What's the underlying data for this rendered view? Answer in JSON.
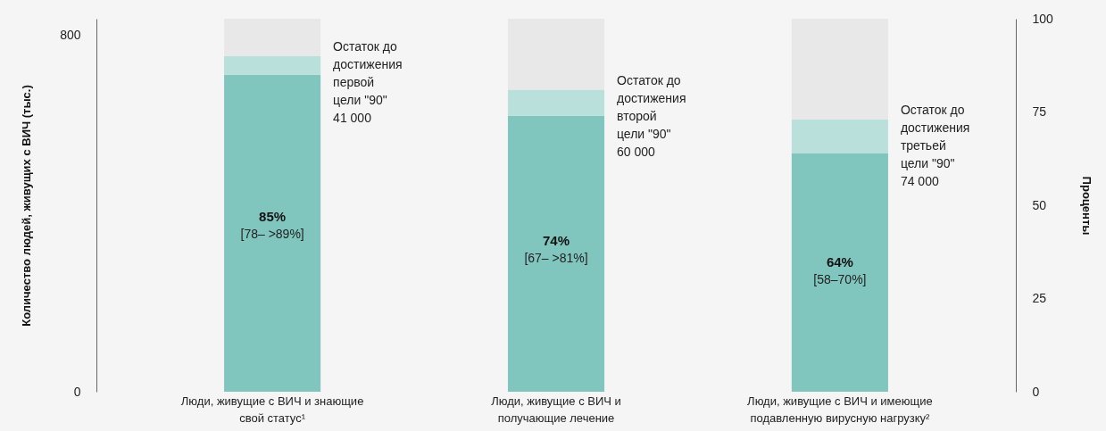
{
  "chart_data": {
    "type": "bar",
    "stacked": true,
    "grid": false,
    "ylabel": "Количество людей, живущих с ВИЧ (тыс.)",
    "y2label": "Проценты",
    "categories": [
      "Люди, живущие с ВИЧ и знающие свой статус¹",
      "Люди, живущие с ВИЧ и получающие лечение",
      "Люди, живущие с ВИЧ и имеющие подавленную вирусную нагрузку²"
    ],
    "ylim": [
      0,
      838
    ],
    "yticks": [
      0,
      800
    ],
    "y2lim": [
      0,
      100
    ],
    "y2ticks": [
      0,
      25,
      50,
      75,
      100
    ],
    "series": [
      {
        "color": "#80c6bf",
        "axis": "y2",
        "values": [
          85,
          74,
          64
        ],
        "value_labels": [
          "85%",
          "74%",
          "64%"
        ]
      },
      {
        "color": "#b9e0db",
        "axis": "y2",
        "values": [
          5,
          7,
          9
        ]
      },
      {
        "color": "#e8e8e8",
        "axis": "y2",
        "values": [
          10,
          19,
          27
        ]
      }
    ],
    "annotations": [
      "[78– >89%]",
      "[67– >81%]",
      "[58–70%]",
      "Остаток до достижения первой цели \"90\" 41 000",
      "Остаток до достижения второй цели \"90\" 60 000",
      "Остаток до достижения третьей цели \"90\" 74 000"
    ]
  }
}
